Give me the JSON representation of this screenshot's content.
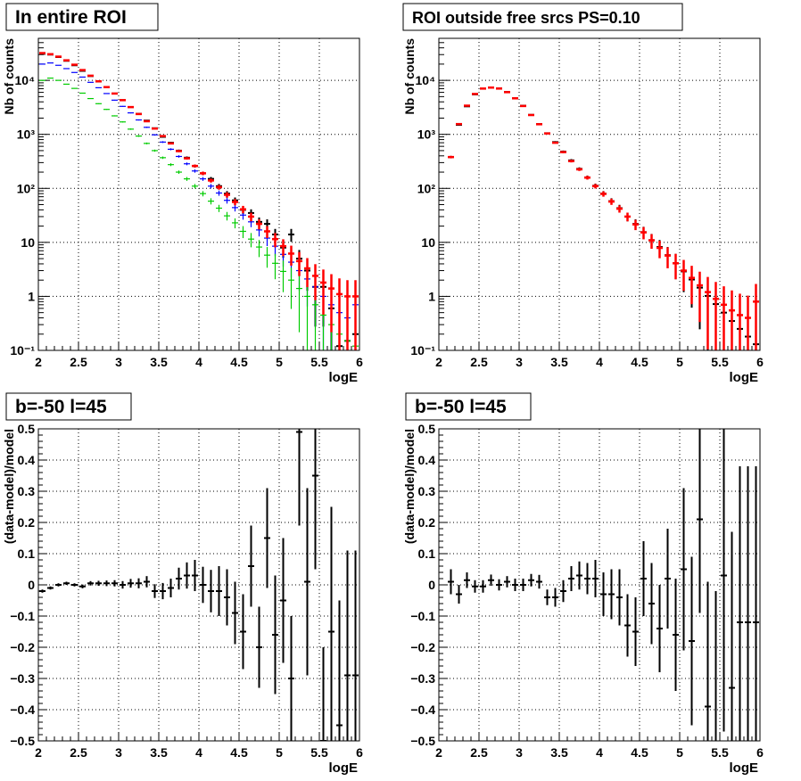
{
  "chart_data": [
    {
      "type": "scatter",
      "title": "In entire ROI",
      "xlabel": "logE",
      "ylabel": "Nb of counts",
      "xlim": [
        2,
        6
      ],
      "ylim": [
        0.1,
        60000
      ],
      "yscale": "log",
      "grid": true,
      "x_ticks": [
        "2",
        "2.5",
        "3",
        "3.5",
        "4",
        "4.5",
        "5",
        "5.5",
        "6"
      ],
      "y_ticks": [
        {
          "value": 0.1,
          "label": "10⁻¹"
        },
        {
          "value": 1,
          "label": "1"
        },
        {
          "value": 10,
          "label": "10"
        },
        {
          "value": 100,
          "label": "10²"
        },
        {
          "value": 1000,
          "label": "10³"
        },
        {
          "value": 10000,
          "label": "10⁴"
        }
      ],
      "x": [
        2.05,
        2.15,
        2.25,
        2.35,
        2.45,
        2.55,
        2.65,
        2.75,
        2.85,
        2.95,
        3.05,
        3.15,
        3.25,
        3.35,
        3.45,
        3.55,
        3.65,
        3.75,
        3.85,
        3.95,
        4.05,
        4.15,
        4.25,
        4.35,
        4.45,
        4.55,
        4.65,
        4.75,
        4.85,
        4.95,
        5.05,
        5.15,
        5.25,
        5.35,
        5.45,
        5.55,
        5.65,
        5.75,
        5.85,
        5.95
      ],
      "series": [
        {
          "color": "#000000",
          "values": [
            31000,
            30000,
            27000,
            23000,
            19000,
            15000,
            12000,
            9500,
            7500,
            5700,
            4300,
            3200,
            2400,
            1800,
            1300,
            900,
            700,
            500,
            370,
            260,
            190,
            150,
            110,
            80,
            60,
            40,
            35,
            24,
            22,
            14,
            8,
            14,
            5,
            3,
            1.5,
            1.5,
            0.6,
            0.12,
            0.15,
            0.2
          ]
        },
        {
          "color": "#0000ff",
          "values": [
            20000,
            21000,
            19000,
            16500,
            14000,
            11500,
            9200,
            7300,
            5700,
            4300,
            3300,
            2500,
            1850,
            1350,
            980,
            720,
            530,
            390,
            285,
            210,
            150,
            110,
            82,
            60,
            44,
            32,
            24,
            17,
            12,
            8.5,
            6,
            4.3,
            3,
            2.1,
            1.5,
            1,
            0.7,
            0.5,
            0.4,
            0.7
          ]
        },
        {
          "color": "#00cc00",
          "values": [
            10000,
            11000,
            10000,
            8500,
            7100,
            5800,
            4600,
            3700,
            2900,
            2200,
            1700,
            1250,
            930,
            680,
            500,
            370,
            275,
            200,
            150,
            110,
            80,
            58,
            43,
            31,
            23,
            16,
            11.5,
            8.2,
            5.8,
            4.1,
            2.9,
            2,
            1.4,
            1,
            0.7,
            0.45,
            0.3,
            0.2,
            0.15,
            0.12
          ]
        },
        {
          "color": "#ff0000",
          "values": [
            32000,
            30500,
            27500,
            23500,
            19500,
            15500,
            12200,
            9600,
            7500,
            5700,
            4300,
            3200,
            2380,
            1750,
            1280,
            930,
            680,
            490,
            360,
            260,
            190,
            140,
            105,
            76,
            56,
            41,
            30,
            22,
            16,
            11.5,
            8.5,
            6.2,
            4.5,
            3.3,
            2.4,
            1.8,
            1.4,
            1.1,
            1,
            1
          ]
        }
      ]
    },
    {
      "type": "scatter",
      "title": "ROI outside free srcs PS=0.10",
      "xlabel": "logE",
      "ylabel": "Nb of counts",
      "xlim": [
        2,
        6
      ],
      "ylim": [
        0.1,
        60000
      ],
      "yscale": "log",
      "grid": true,
      "x_ticks": [
        "2",
        "2.5",
        "3",
        "3.5",
        "4",
        "4.5",
        "5",
        "5.5",
        "6"
      ],
      "y_ticks": [
        {
          "value": 0.1,
          "label": "10⁻¹"
        },
        {
          "value": 1,
          "label": "1"
        },
        {
          "value": 10,
          "label": "10"
        },
        {
          "value": 100,
          "label": "10²"
        },
        {
          "value": 1000,
          "label": "10³"
        },
        {
          "value": 10000,
          "label": "10⁴"
        }
      ],
      "x": [
        2.15,
        2.25,
        2.35,
        2.45,
        2.55,
        2.65,
        2.75,
        2.85,
        2.95,
        3.05,
        3.15,
        3.25,
        3.35,
        3.45,
        3.55,
        3.65,
        3.75,
        3.85,
        3.95,
        4.05,
        4.15,
        4.25,
        4.35,
        4.45,
        4.55,
        4.65,
        4.75,
        4.85,
        4.95,
        5.05,
        5.15,
        5.25,
        5.35,
        5.45,
        5.55,
        5.65,
        5.75,
        5.85,
        5.95
      ],
      "series": [
        {
          "color": "#000000",
          "values": [
            380,
            1500,
            3300,
            5500,
            7000,
            7300,
            7100,
            6100,
            4700,
            3400,
            2300,
            1550,
            1050,
            720,
            480,
            330,
            230,
            160,
            112,
            80,
            58,
            43,
            30,
            22,
            15.5,
            11,
            8.2,
            5.8,
            4.1,
            2.9,
            2.05,
            1.45,
            1.02,
            0.72,
            0.5,
            0.35,
            0.25,
            0.18,
            0.13
          ]
        },
        {
          "color": "#ff0000",
          "values": [
            380,
            1550,
            3400,
            5600,
            7050,
            7350,
            7050,
            6050,
            4650,
            3350,
            2280,
            1540,
            1040,
            700,
            470,
            320,
            225,
            158,
            110,
            79,
            57,
            42,
            30,
            21.5,
            15.3,
            10.9,
            7.9,
            5.7,
            4.1,
            3,
            2.2,
            1.6,
            1.2,
            0.9,
            0.7,
            0.55,
            0.45,
            0.4,
            0.8
          ]
        }
      ]
    },
    {
      "type": "scatter",
      "title": "b=-50 l=45",
      "xlabel": "logE",
      "ylabel": "(data-model)/model",
      "xlim": [
        2,
        6
      ],
      "ylim": [
        -0.5,
        0.5
      ],
      "grid": true,
      "x_ticks": [
        "2",
        "2.5",
        "3",
        "3.5",
        "4",
        "4.5",
        "5",
        "5.5",
        "6"
      ],
      "y_ticks": [
        "−0.5",
        "−0.4",
        "−0.3",
        "−0.2",
        "−0.1",
        "0",
        "0.1",
        "0.2",
        "0.3",
        "0.4",
        "0.5"
      ],
      "x": [
        2.05,
        2.15,
        2.25,
        2.35,
        2.45,
        2.55,
        2.65,
        2.75,
        2.85,
        2.95,
        3.05,
        3.15,
        3.25,
        3.35,
        3.45,
        3.55,
        3.65,
        3.75,
        3.85,
        3.95,
        4.05,
        4.15,
        4.25,
        4.35,
        4.45,
        4.55,
        4.65,
        4.75,
        4.85,
        4.95,
        5.05,
        5.15,
        5.25,
        5.35,
        5.45,
        5.55,
        5.65,
        5.75,
        5.85,
        5.95
      ],
      "values": [
        -0.02,
        -0.01,
        0,
        0.005,
        0,
        -0.005,
        0.005,
        0.005,
        0.005,
        0.005,
        0,
        0.005,
        0.005,
        0.01,
        -0.02,
        -0.02,
        -0.01,
        0.02,
        0.03,
        0.03,
        0,
        -0.02,
        -0.02,
        -0.04,
        -0.09,
        -0.15,
        0.06,
        -0.2,
        0.15,
        -0.16,
        -0.05,
        -0.3,
        0.49,
        0.01,
        0.35,
        -0.5,
        -0.15,
        -0.45,
        -0.29,
        -0.29
      ],
      "errors": [
        0.005,
        0.005,
        0.005,
        0.005,
        0.005,
        0.006,
        0.007,
        0.008,
        0.009,
        0.01,
        0.012,
        0.014,
        0.016,
        0.018,
        0.022,
        0.026,
        0.03,
        0.035,
        0.042,
        0.05,
        0.058,
        0.068,
        0.08,
        0.09,
        0.1,
        0.12,
        0.13,
        0.13,
        0.16,
        0.19,
        0.2,
        0.2,
        0.3,
        0.3,
        0.3,
        0.3,
        0.4,
        0.4,
        0.4,
        0.4
      ]
    },
    {
      "type": "scatter",
      "title": "b=-50 l=45",
      "xlabel": "logE",
      "ylabel": "(data-model)/model",
      "xlim": [
        2,
        6
      ],
      "ylim": [
        -0.5,
        0.5
      ],
      "grid": true,
      "x_ticks": [
        "2",
        "2.5",
        "3",
        "3.5",
        "4",
        "4.5",
        "5",
        "5.5",
        "6"
      ],
      "y_ticks": [
        "−0.5",
        "−0.4",
        "−0.3",
        "−0.2",
        "−0.1",
        "0",
        "0.1",
        "0.2",
        "0.3",
        "0.4",
        "0.5"
      ],
      "x": [
        2.15,
        2.25,
        2.35,
        2.45,
        2.55,
        2.65,
        2.75,
        2.85,
        2.95,
        3.05,
        3.15,
        3.25,
        3.35,
        3.45,
        3.55,
        3.65,
        3.75,
        3.85,
        3.95,
        4.05,
        4.15,
        4.25,
        4.35,
        4.45,
        4.55,
        4.65,
        4.75,
        4.85,
        4.95,
        5.05,
        5.15,
        5.25,
        5.35,
        5.45,
        5.55,
        5.65,
        5.75,
        5.85,
        5.95
      ],
      "values": [
        0.01,
        -0.03,
        0.015,
        -0.005,
        -0.005,
        0.015,
        0,
        0.01,
        0,
        0,
        0.015,
        0.01,
        -0.04,
        -0.04,
        -0.02,
        0.02,
        0.03,
        0.02,
        0.02,
        -0.03,
        -0.03,
        -0.04,
        -0.13,
        -0.15,
        0.02,
        -0.06,
        -0.14,
        0.02,
        -0.16,
        0.05,
        -0.18,
        0.21,
        -0.39,
        -0.52,
        0.03,
        -0.33,
        -0.12,
        -0.12,
        -0.12
      ],
      "errors": [
        0.04,
        0.03,
        0.025,
        0.02,
        0.02,
        0.018,
        0.018,
        0.018,
        0.02,
        0.02,
        0.02,
        0.022,
        0.025,
        0.03,
        0.035,
        0.04,
        0.045,
        0.05,
        0.06,
        0.07,
        0.08,
        0.09,
        0.1,
        0.11,
        0.12,
        0.13,
        0.14,
        0.16,
        0.18,
        0.26,
        0.27,
        0.3,
        0.4,
        0.5,
        0.5,
        0.5,
        0.5,
        0.5,
        0.5
      ]
    }
  ]
}
